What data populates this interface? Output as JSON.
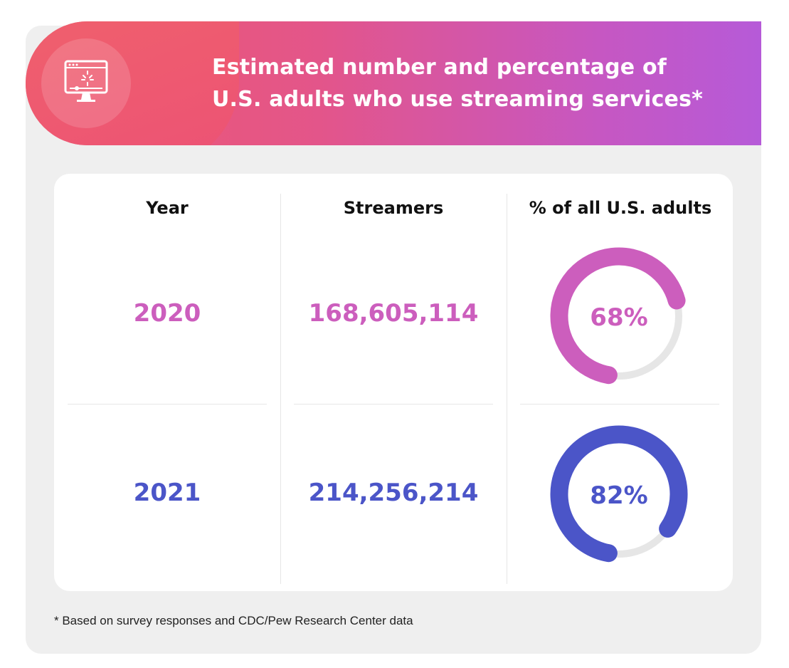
{
  "header": {
    "title_line1": "Estimated number and percentage of",
    "title_line2": "U.S. adults who use streaming services*",
    "icon": "monitor-video-player-icon"
  },
  "table": {
    "columns": [
      "Year",
      "Streamers",
      "% of all U.S. adults"
    ],
    "rows": [
      {
        "year": "2020",
        "streamers": "168,605,114",
        "percent_label": "68%",
        "percent": 68,
        "color": "#cc5ebd"
      },
      {
        "year": "2021",
        "streamers": "214,256,214",
        "percent_label": "82%",
        "percent": 82,
        "color": "#4b55c8"
      }
    ]
  },
  "colors": {
    "gradient_start": "#ef5a6e",
    "gradient_end": "#b65ad8",
    "track": "#e6e6e6"
  },
  "footnote": "* Based on survey responses and CDC/Pew Research Center data"
}
